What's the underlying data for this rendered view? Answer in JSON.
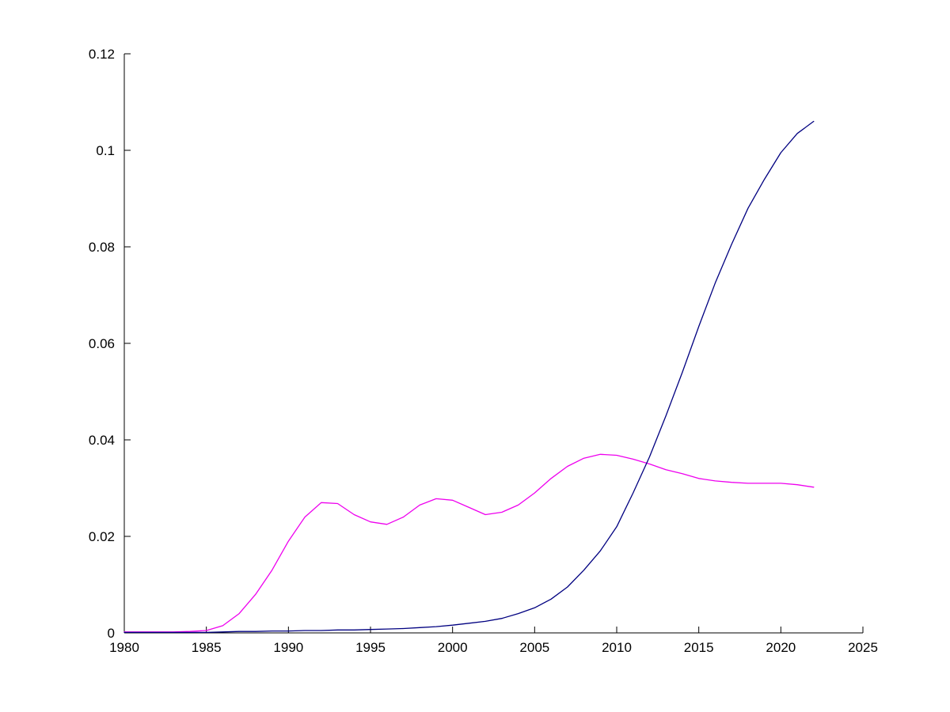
{
  "figure": {
    "background": "#ffffff"
  },
  "chart_data": {
    "type": "line",
    "title": "",
    "xlabel": "",
    "ylabel": "",
    "grid": false,
    "legend": null,
    "xlim": [
      1980,
      2025
    ],
    "ylim": [
      0,
      0.12
    ],
    "xticks": [
      1980,
      1985,
      1990,
      1995,
      2000,
      2005,
      2010,
      2015,
      2020,
      2025
    ],
    "xtick_labels": [
      "1980",
      "1985",
      "1990",
      "1995",
      "2000",
      "2005",
      "2010",
      "2015",
      "2020",
      "2025"
    ],
    "yticks": [
      0,
      0.02,
      0.04,
      0.06,
      0.08,
      0.1,
      0.12
    ],
    "ytick_labels": [
      "0",
      "0.02",
      "0.04",
      "0.06",
      "0.08",
      "0.1",
      "0.12"
    ],
    "axis_color": "#000000",
    "x": [
      1980,
      1981,
      1982,
      1983,
      1984,
      1985,
      1986,
      1987,
      1988,
      1989,
      1990,
      1991,
      1992,
      1993,
      1994,
      1995,
      1996,
      1997,
      1998,
      1999,
      2000,
      2001,
      2002,
      2003,
      2004,
      2005,
      2006,
      2007,
      2008,
      2009,
      2010,
      2011,
      2012,
      2013,
      2014,
      2015,
      2016,
      2017,
      2018,
      2019,
      2020,
      2021,
      2022
    ],
    "series": [
      {
        "name": "magenta-series",
        "color": "#ee00ee",
        "values": [
          0.0002,
          0.0002,
          0.0002,
          0.0002,
          0.0003,
          0.0005,
          0.0015,
          0.004,
          0.008,
          0.013,
          0.019,
          0.024,
          0.027,
          0.0268,
          0.0245,
          0.023,
          0.0225,
          0.024,
          0.0265,
          0.0278,
          0.0275,
          0.026,
          0.0245,
          0.025,
          0.0265,
          0.029,
          0.032,
          0.0345,
          0.0362,
          0.037,
          0.0368,
          0.036,
          0.035,
          0.0338,
          0.033,
          0.032,
          0.0315,
          0.0312,
          0.031,
          0.031,
          0.031,
          0.0307,
          0.0302
        ]
      },
      {
        "name": "blue-series",
        "color": "#000080",
        "values": [
          0.0001,
          0.0001,
          0.0001,
          0.0001,
          0.0001,
          0.0001,
          0.0002,
          0.0003,
          0.0003,
          0.0004,
          0.0004,
          0.0005,
          0.0005,
          0.0006,
          0.0006,
          0.0007,
          0.0008,
          0.0009,
          0.0011,
          0.0013,
          0.0016,
          0.002,
          0.0024,
          0.003,
          0.004,
          0.0052,
          0.007,
          0.0095,
          0.013,
          0.017,
          0.022,
          0.029,
          0.0365,
          0.045,
          0.054,
          0.0635,
          0.0725,
          0.0805,
          0.088,
          0.094,
          0.0995,
          0.1035,
          0.106
        ]
      }
    ]
  }
}
